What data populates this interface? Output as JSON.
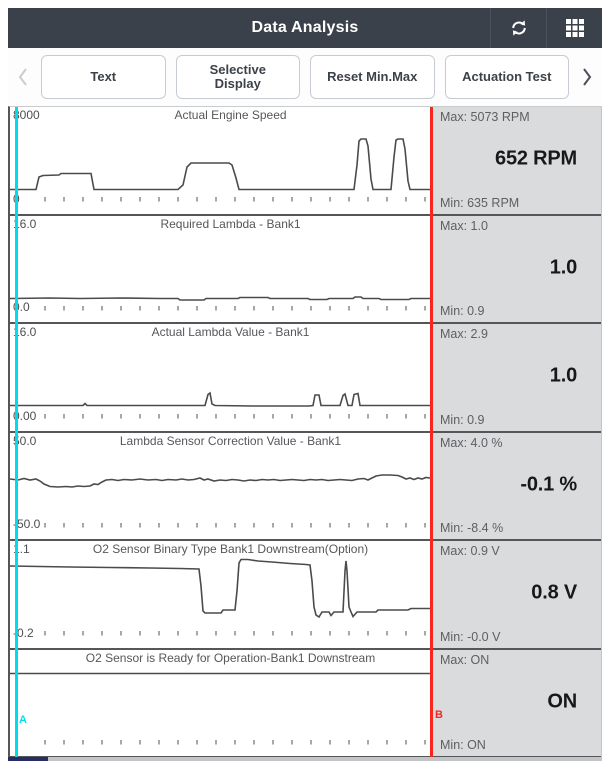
{
  "header": {
    "title": "Data Analysis",
    "refresh_icon": "refresh",
    "grid_icon": "app-grid"
  },
  "toolbar": {
    "prev_label": "‹",
    "next_label": "›",
    "buttons": [
      "Text",
      "Selective\nDisplay",
      "Reset Min.Max",
      "Actuation Test"
    ]
  },
  "cursors": {
    "a_label": "A",
    "b_label": "B",
    "a_color": "#00dcec",
    "b_color": "#f8271d"
  },
  "colors": {
    "topbar": "#3a414b",
    "side_panel": "#d9dbdd",
    "divider": "#55565a",
    "wave": "#4a4b4d",
    "tick": "#77787a"
  },
  "panels": [
    {
      "title": "Actual Engine Speed",
      "y_max": "8000",
      "y_min": "0",
      "max_label": "Max: 5073 RPM",
      "min_label": "Min: 635 RPM",
      "value": "652 RPM",
      "wave": [
        [
          0,
          82.5
        ],
        [
          26,
          82.5
        ],
        [
          29,
          70
        ],
        [
          33,
          68.5
        ],
        [
          49,
          68
        ],
        [
          51,
          66.5
        ],
        [
          81,
          66.5
        ],
        [
          84,
          82.5
        ],
        [
          168,
          82.5
        ],
        [
          173,
          78
        ],
        [
          177,
          60
        ],
        [
          181,
          56
        ],
        [
          219,
          56
        ],
        [
          222,
          58
        ],
        [
          226,
          71
        ],
        [
          229,
          82.5
        ],
        [
          344,
          82.5
        ],
        [
          347,
          58
        ],
        [
          349,
          34
        ],
        [
          351,
          32
        ],
        [
          356,
          32
        ],
        [
          358,
          39
        ],
        [
          361,
          72
        ],
        [
          363,
          82.5
        ],
        [
          381,
          82.5
        ],
        [
          384,
          50
        ],
        [
          386,
          33
        ],
        [
          388,
          32
        ],
        [
          393,
          32
        ],
        [
          395,
          42
        ],
        [
          398,
          74
        ],
        [
          400,
          82.5
        ],
        [
          421,
          82.5
        ]
      ]
    },
    {
      "title": "Required Lambda - Bank1",
      "y_max": "16.0",
      "y_min": "0.0",
      "max_label": "Max: 1.0",
      "min_label": "Min: 0.9",
      "value": "1.0",
      "wave": [
        [
          0,
          82.5
        ],
        [
          40,
          82
        ],
        [
          70,
          82.5
        ],
        [
          110,
          82
        ],
        [
          150,
          82.5
        ],
        [
          168,
          82.5
        ],
        [
          170,
          84
        ],
        [
          194,
          84
        ],
        [
          196,
          82.5
        ],
        [
          228,
          82.5
        ],
        [
          230,
          81.5
        ],
        [
          258,
          81.5
        ],
        [
          260,
          82.5
        ],
        [
          298,
          82.5
        ],
        [
          300,
          83.5
        ],
        [
          317,
          83.5
        ],
        [
          319,
          82.5
        ],
        [
          343,
          82.5
        ],
        [
          345,
          81
        ],
        [
          351,
          81
        ],
        [
          353,
          82.5
        ],
        [
          369,
          82.5
        ],
        [
          371,
          83.5
        ],
        [
          399,
          83.5
        ],
        [
          401,
          82.5
        ],
        [
          421,
          82.5
        ]
      ]
    },
    {
      "title": "Actual Lambda Value - Bank1",
      "y_max": "16.0",
      "y_min": "0.00",
      "max_label": "Max: 2.9",
      "min_label": "Min: 0.9",
      "value": "1.0",
      "wave": [
        [
          0,
          81.5
        ],
        [
          73,
          81.5
        ],
        [
          75,
          79.5
        ],
        [
          77,
          81.5
        ],
        [
          195,
          81.5
        ],
        [
          198,
          70.5
        ],
        [
          200,
          69
        ],
        [
          202,
          80
        ],
        [
          205,
          81.5
        ],
        [
          243,
          82
        ],
        [
          299,
          82
        ],
        [
          303,
          81.5
        ],
        [
          305,
          71
        ],
        [
          309,
          71
        ],
        [
          311,
          81.5
        ],
        [
          330,
          81.5
        ],
        [
          333,
          71.5
        ],
        [
          335,
          70
        ],
        [
          338,
          81.5
        ],
        [
          342,
          81.5
        ],
        [
          344,
          70.5
        ],
        [
          348,
          69.5
        ],
        [
          350,
          81.5
        ],
        [
          421,
          81.5
        ]
      ]
    },
    {
      "title": "Lambda Sensor Correction Value - Bank1",
      "y_max": "50.0",
      "y_min": "-50.0",
      "max_label": "Max: 4.0 %",
      "min_label": "Min: -8.4 %",
      "value": "-0.1 %",
      "wave": [
        [
          0,
          46
        ],
        [
          8,
          47
        ],
        [
          14,
          45.5
        ],
        [
          20,
          47
        ],
        [
          26,
          46
        ],
        [
          30,
          48
        ],
        [
          34,
          51
        ],
        [
          40,
          53.5
        ],
        [
          48,
          54
        ],
        [
          56,
          53.5
        ],
        [
          62,
          54
        ],
        [
          68,
          53
        ],
        [
          74,
          53.5
        ],
        [
          80,
          53
        ],
        [
          84,
          51
        ],
        [
          88,
          51.5
        ],
        [
          92,
          49
        ],
        [
          96,
          47
        ],
        [
          102,
          46.5
        ],
        [
          108,
          47.5
        ],
        [
          114,
          46.5
        ],
        [
          122,
          47
        ],
        [
          130,
          46
        ],
        [
          138,
          47
        ],
        [
          146,
          46.5
        ],
        [
          152,
          47.5
        ],
        [
          158,
          46.5
        ],
        [
          166,
          47
        ],
        [
          172,
          46
        ],
        [
          178,
          47
        ],
        [
          184,
          46.5
        ],
        [
          190,
          45
        ],
        [
          194,
          47
        ],
        [
          198,
          46
        ],
        [
          204,
          48
        ],
        [
          210,
          47
        ],
        [
          216,
          47.5
        ],
        [
          222,
          46.5
        ],
        [
          228,
          47
        ],
        [
          234,
          48
        ],
        [
          240,
          47
        ],
        [
          246,
          47.5
        ],
        [
          252,
          46.5
        ],
        [
          258,
          47
        ],
        [
          264,
          46.5
        ],
        [
          270,
          47.5
        ],
        [
          276,
          47
        ],
        [
          282,
          46.5
        ],
        [
          288,
          47
        ],
        [
          294,
          47.5
        ],
        [
          300,
          46.5
        ],
        [
          306,
          47
        ],
        [
          312,
          46.5
        ],
        [
          318,
          47.5
        ],
        [
          324,
          47
        ],
        [
          330,
          46.5
        ],
        [
          336,
          47
        ],
        [
          342,
          47.5
        ],
        [
          348,
          46
        ],
        [
          354,
          45.5
        ],
        [
          358,
          47
        ],
        [
          362,
          45
        ],
        [
          366,
          43
        ],
        [
          372,
          42
        ],
        [
          380,
          42
        ],
        [
          388,
          42.5
        ],
        [
          392,
          44
        ],
        [
          396,
          46
        ],
        [
          400,
          45
        ],
        [
          404,
          46.5
        ],
        [
          408,
          45
        ],
        [
          412,
          46
        ],
        [
          416,
          44.5
        ],
        [
          420,
          45
        ],
        [
          421,
          45
        ]
      ]
    },
    {
      "title": "O2 Sensor Binary Type Bank1 Downstream(Option)",
      "y_max": "1.1",
      "y_min": "-0.2",
      "max_label": "Max: 0.9 V",
      "min_label": "Min: -0.0 V",
      "value": "0.8 V",
      "wave": [
        [
          0,
          25
        ],
        [
          30,
          25.5
        ],
        [
          60,
          26
        ],
        [
          100,
          26.5
        ],
        [
          140,
          27
        ],
        [
          170,
          27.5
        ],
        [
          189,
          28
        ],
        [
          191,
          45
        ],
        [
          193,
          70
        ],
        [
          195,
          72
        ],
        [
          211,
          72
        ],
        [
          213,
          69
        ],
        [
          225,
          69
        ],
        [
          227,
          50
        ],
        [
          229,
          22
        ],
        [
          231,
          18.5
        ],
        [
          238,
          18.5
        ],
        [
          248,
          20
        ],
        [
          262,
          21
        ],
        [
          280,
          22.5
        ],
        [
          296,
          23.5
        ],
        [
          300,
          24
        ],
        [
          302,
          40
        ],
        [
          304,
          66
        ],
        [
          306,
          74
        ],
        [
          309,
          76
        ],
        [
          312,
          71
        ],
        [
          319,
          71
        ],
        [
          321,
          74.5
        ],
        [
          324,
          71
        ],
        [
          333,
          71
        ],
        [
          335,
          30
        ],
        [
          336,
          20
        ],
        [
          337,
          30
        ],
        [
          339,
          66
        ],
        [
          341,
          71
        ],
        [
          343,
          75.5
        ],
        [
          347,
          71
        ],
        [
          366,
          71
        ],
        [
          368,
          69
        ],
        [
          398,
          69
        ],
        [
          401,
          67.5
        ],
        [
          421,
          67.5
        ]
      ]
    },
    {
      "title": "O2 Sensor is Ready for Operation-Bank1 Downstream",
      "y_max": "",
      "y_min": "",
      "max_label": "Max: ON",
      "min_label": "Min: ON",
      "value": "ON",
      "wave": [
        [
          0,
          23.5
        ],
        [
          421,
          23.5
        ]
      ]
    }
  ]
}
